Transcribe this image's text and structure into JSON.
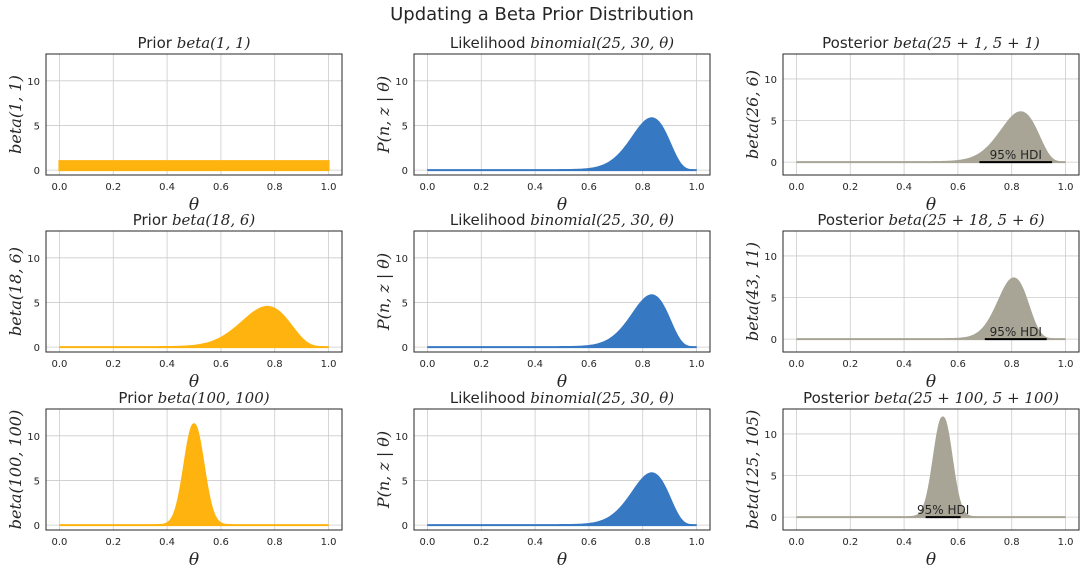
{
  "figure": {
    "suptitle": "Updating a Beta Prior Distribution",
    "colors": {
      "prior": "#ffb30f",
      "likelihood": "#3778c2",
      "posterior": "#a8a596",
      "grid": "#cccccc",
      "axis": "#262626"
    }
  },
  "chart_data": [
    {
      "type": "area",
      "role": "prior",
      "title": "Prior beta(1, 1)",
      "title_plain": "Prior ",
      "title_math": "beta(1, 1)",
      "ylabel": "beta(1, 1)",
      "xlabel": "θ",
      "a": 1,
      "b": 1,
      "xlim": [
        0,
        1
      ],
      "ylim": [
        0,
        13
      ],
      "xticks": [
        "0.0",
        "0.2",
        "0.4",
        "0.6",
        "0.8",
        "1.0"
      ],
      "yticks": [
        "0",
        "5",
        "10"
      ],
      "peak": 1.0
    },
    {
      "type": "area",
      "role": "likelihood",
      "title": "Likelihood binomial(25, 30, θ)",
      "title_plain": "Likelihood ",
      "title_math": "binomial(25, 30, θ)",
      "ylabel": "P(n, z | θ)",
      "xlabel": "θ",
      "a": 26,
      "b": 6,
      "xlim": [
        0,
        1
      ],
      "ylim": [
        0,
        13
      ],
      "xticks": [
        "0.0",
        "0.2",
        "0.4",
        "0.6",
        "0.8",
        "1.0"
      ],
      "yticks": [
        "0",
        "5",
        "10"
      ],
      "peak": 5.8
    },
    {
      "type": "area",
      "role": "posterior",
      "title": "Posterior beta(25 + 1, 5 + 1)",
      "title_plain": "Posterior ",
      "title_math": "beta(25 + 1, 5 + 1)",
      "ylabel": "beta(26, 6)",
      "xlabel": "θ",
      "a": 26,
      "b": 6,
      "xlim": [
        0,
        1
      ],
      "ylim": [
        -1,
        13
      ],
      "xticks": [
        "0.0",
        "0.2",
        "0.4",
        "0.6",
        "0.8",
        "1.0"
      ],
      "yticks": [
        "0",
        "5",
        "10"
      ],
      "peak": 6.0,
      "hdi": [
        0.68,
        0.95
      ],
      "hdi_label": "95% HDI"
    },
    {
      "type": "area",
      "role": "prior",
      "title": "Prior beta(18, 6)",
      "title_plain": "Prior ",
      "title_math": "beta(18, 6)",
      "ylabel": "beta(18, 6)",
      "xlabel": "θ",
      "a": 18,
      "b": 6,
      "xlim": [
        0,
        1
      ],
      "ylim": [
        0,
        13
      ],
      "xticks": [
        "0.0",
        "0.2",
        "0.4",
        "0.6",
        "0.8",
        "1.0"
      ],
      "yticks": [
        "0",
        "5",
        "10"
      ],
      "peak": 4.5
    },
    {
      "type": "area",
      "role": "likelihood",
      "title": "Likelihood binomial(25, 30, θ)",
      "title_plain": "Likelihood ",
      "title_math": "binomial(25, 30, θ)",
      "ylabel": "P(n, z | θ)",
      "xlabel": "θ",
      "a": 26,
      "b": 6,
      "xlim": [
        0,
        1
      ],
      "ylim": [
        0,
        13
      ],
      "xticks": [
        "0.0",
        "0.2",
        "0.4",
        "0.6",
        "0.8",
        "1.0"
      ],
      "yticks": [
        "0",
        "5",
        "10"
      ],
      "peak": 5.8
    },
    {
      "type": "area",
      "role": "posterior",
      "title": "Posterior beta(25 + 18, 5 + 6)",
      "title_plain": "Posterior ",
      "title_math": "beta(25 + 18, 5 + 6)",
      "ylabel": "beta(43, 11)",
      "xlabel": "θ",
      "a": 43,
      "b": 11,
      "xlim": [
        0,
        1
      ],
      "ylim": [
        -1,
        13
      ],
      "xticks": [
        "0.0",
        "0.2",
        "0.4",
        "0.6",
        "0.8",
        "1.0"
      ],
      "yticks": [
        "0",
        "5",
        "10"
      ],
      "peak": 7.3,
      "hdi": [
        0.7,
        0.93
      ],
      "hdi_label": "95% HDI"
    },
    {
      "type": "area",
      "role": "prior",
      "title": "Prior beta(100, 100)",
      "title_plain": "Prior ",
      "title_math": "beta(100, 100)",
      "ylabel": "beta(100, 100)",
      "xlabel": "θ",
      "a": 100,
      "b": 100,
      "xlim": [
        0,
        1
      ],
      "ylim": [
        0,
        13
      ],
      "xticks": [
        "0.0",
        "0.2",
        "0.4",
        "0.6",
        "0.8",
        "1.0"
      ],
      "yticks": [
        "0",
        "5",
        "10"
      ],
      "peak": 11.3
    },
    {
      "type": "area",
      "role": "likelihood",
      "title": "Likelihood binomial(25, 30, θ)",
      "title_plain": "Likelihood ",
      "title_math": "binomial(25, 30, θ)",
      "ylabel": "P(n, z | θ)",
      "xlabel": "θ",
      "a": 26,
      "b": 6,
      "xlim": [
        0,
        1
      ],
      "ylim": [
        0,
        13
      ],
      "xticks": [
        "0.0",
        "0.2",
        "0.4",
        "0.6",
        "0.8",
        "1.0"
      ],
      "yticks": [
        "0",
        "5",
        "10"
      ],
      "peak": 5.8
    },
    {
      "type": "area",
      "role": "posterior",
      "title": "Posterior beta(25 + 100, 5 + 100)",
      "title_plain": "Posterior ",
      "title_math": "beta(25 + 100, 5 + 100)",
      "ylabel": "beta(125, 105)",
      "xlabel": "θ",
      "a": 125,
      "b": 105,
      "xlim": [
        0,
        1
      ],
      "ylim": [
        -1,
        13
      ],
      "xticks": [
        "0.0",
        "0.2",
        "0.4",
        "0.6",
        "0.8",
        "1.0"
      ],
      "yticks": [
        "0",
        "5",
        "10"
      ],
      "peak": 12.0,
      "hdi": [
        0.48,
        0.61
      ],
      "hdi_label": "95% HDI"
    }
  ]
}
